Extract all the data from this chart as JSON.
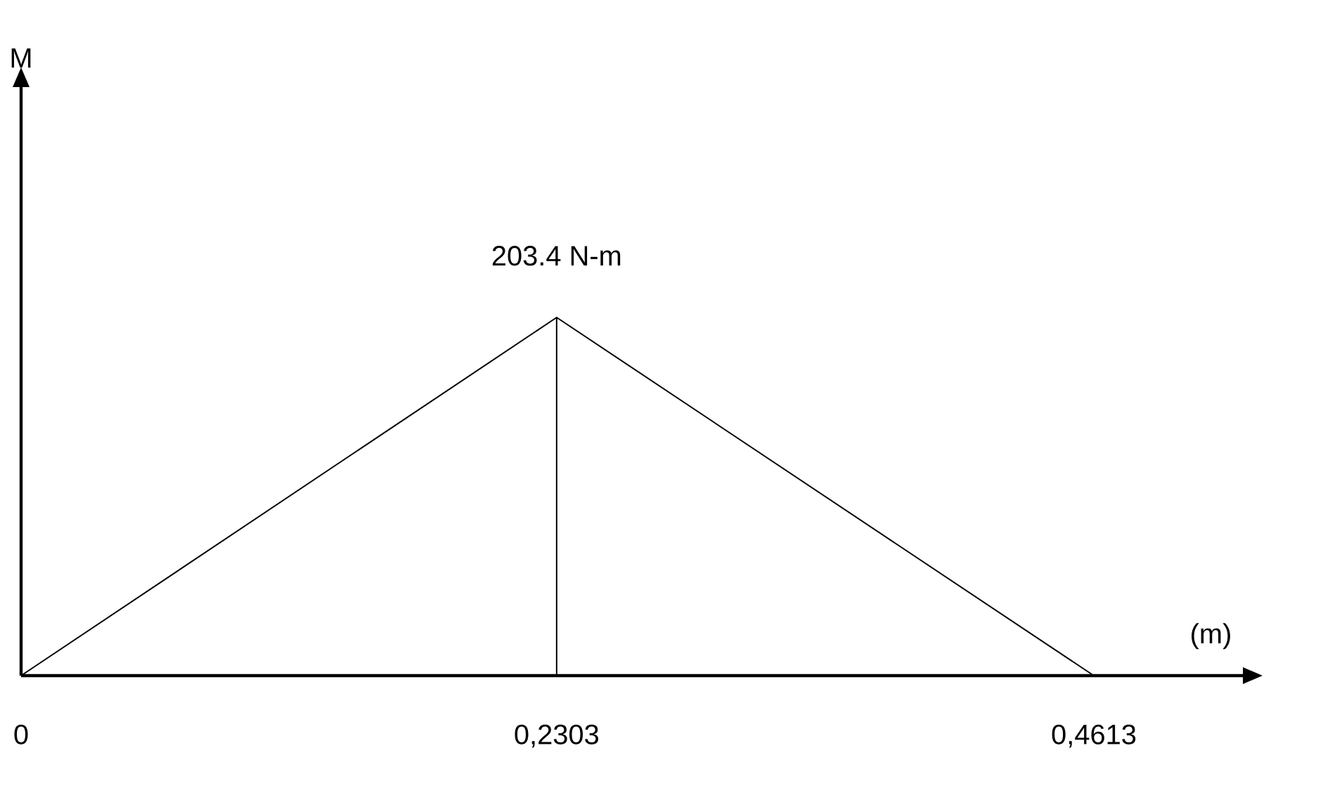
{
  "chart_data": {
    "type": "line",
    "xlabel": "(m)",
    "ylabel": "M",
    "xlim": [
      0,
      0.526
    ],
    "ylim": [
      0,
      335
    ],
    "xticks": [
      0,
      {
        "value": 0.2303,
        "label": "0,2303"
      },
      {
        "value": 0.4613,
        "label": "0,4613"
      }
    ],
    "tick_labels": "x",
    "series": [
      {
        "color": "#000000",
        "x": [
          0,
          0.2303,
          0.4613
        ],
        "values": [
          0,
          203.4,
          0
        ],
        "value_labels": [
          null,
          "203.4 N-m",
          null
        ]
      },
      {
        "color": "#000000",
        "x": [
          0.2303,
          0.2303
        ],
        "values": [
          0,
          203.4
        ]
      }
    ]
  }
}
